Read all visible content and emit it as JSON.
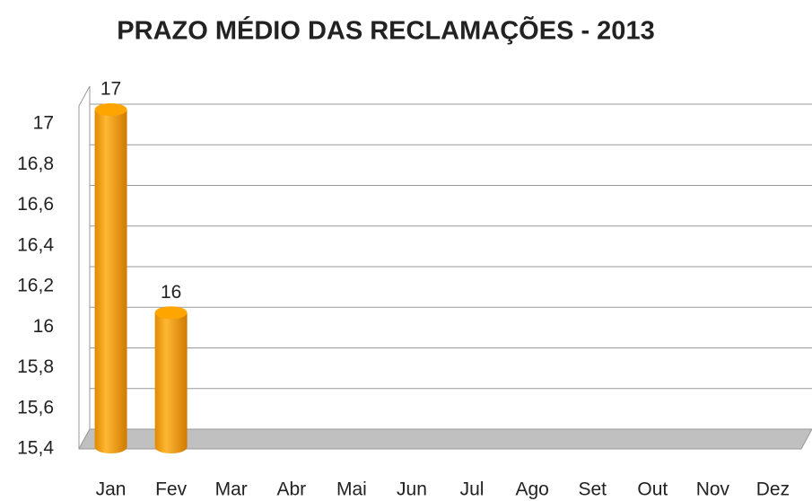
{
  "chart_data": {
    "type": "bar",
    "title": "PRAZO MÉDIO DAS RECLAMAÇÕES - 2013",
    "categories": [
      "Jan",
      "Fev",
      "Mar",
      "Abr",
      "Mai",
      "Jun",
      "Jul",
      "Ago",
      "Set",
      "Out",
      "Nov",
      "Dez"
    ],
    "values": [
      17,
      16,
      null,
      null,
      null,
      null,
      null,
      null,
      null,
      null,
      null,
      null
    ],
    "color": "#ffa500",
    "ylim": [
      15.4,
      17
    ],
    "yticks": [
      {
        "value": 15.4,
        "label": "15,4"
      },
      {
        "value": 15.6,
        "label": "15,6"
      },
      {
        "value": 15.8,
        "label": "15,8"
      },
      16,
      {
        "value": 16.2,
        "label": "16,2"
      },
      {
        "value": 16.4,
        "label": "16,4"
      },
      {
        "value": 16.6,
        "label": "16,6"
      },
      {
        "value": 16.8,
        "label": "16,8"
      },
      17
    ],
    "grid": true
  }
}
